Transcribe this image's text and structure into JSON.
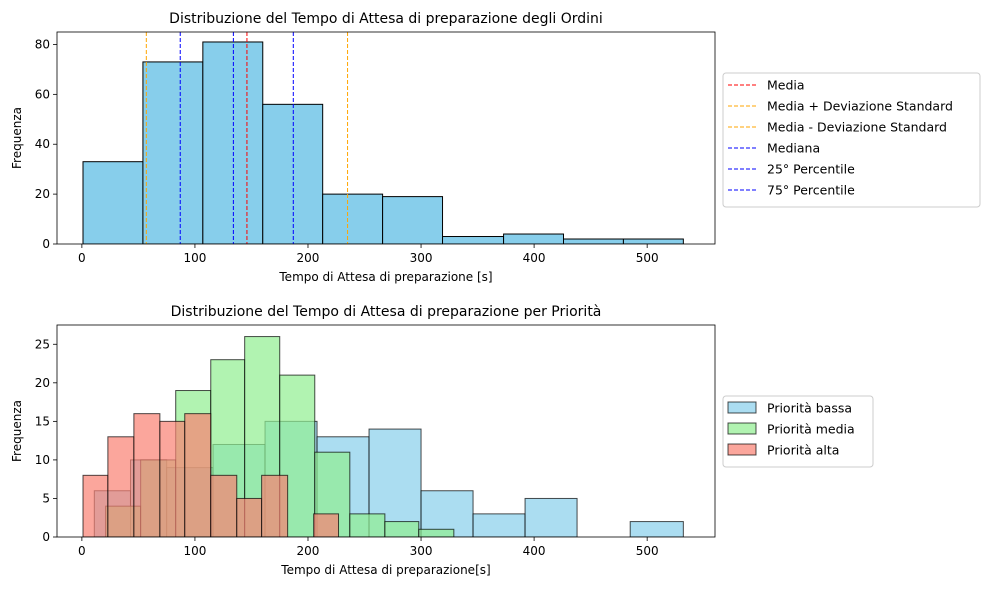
{
  "chart_data": [
    {
      "type": "histogram",
      "title": "Distribuzione del Tempo di Attesa di preparazione degli Ordini",
      "xlabel": "Tempo di Attesa di preparazione [s]",
      "ylabel": "Frequenza",
      "xlim": [
        -22,
        560
      ],
      "ylim": [
        0,
        85
      ],
      "xticks": [
        0,
        100,
        200,
        300,
        400,
        500
      ],
      "yticks": [
        0,
        20,
        40,
        60,
        80
      ],
      "legend_position": "outside-right",
      "series": [
        {
          "color": "#87ceeb",
          "bins": [
            {
              "x0": 1,
              "x1": 54,
              "count": 33
            },
            {
              "x0": 54,
              "x1": 107,
              "count": 73
            },
            {
              "x0": 107,
              "x1": 160,
              "count": 81
            },
            {
              "x0": 160,
              "x1": 213,
              "count": 56
            },
            {
              "x0": 213,
              "x1": 266,
              "count": 20
            },
            {
              "x0": 266,
              "x1": 319,
              "count": 19
            },
            {
              "x0": 319,
              "x1": 373,
              "count": 3
            },
            {
              "x0": 373,
              "x1": 426,
              "count": 4
            },
            {
              "x0": 426,
              "x1": 479,
              "count": 2
            },
            {
              "x0": 479,
              "x1": 532,
              "count": 2
            }
          ]
        }
      ],
      "vlines": [
        {
          "label": "Media",
          "x": 146,
          "color": "#ff0000"
        },
        {
          "label": "Media + Deviazione Standard",
          "x": 235,
          "color": "#ffa500"
        },
        {
          "label": "Media - Deviazione Standard",
          "x": 57,
          "color": "#ffa500"
        },
        {
          "label": "Mediana",
          "x": 134,
          "color": "#0000ff"
        },
        {
          "label": "25° Percentile",
          "x": 87,
          "color": "#0000ff"
        },
        {
          "label": "75° Percentile",
          "x": 187,
          "color": "#0000ff"
        }
      ]
    },
    {
      "type": "histogram",
      "title": "Distribuzione del Tempo di Attesa di preparazione per Priorità",
      "xlabel": "Tempo di Attesa di preparazione[s]",
      "ylabel": "Frequenza",
      "xlim": [
        -22,
        560
      ],
      "ylim": [
        0,
        27.5
      ],
      "xticks": [
        0,
        100,
        200,
        300,
        400,
        500
      ],
      "yticks": [
        0,
        5,
        10,
        15,
        20,
        25
      ],
      "legend_position": "outside-right",
      "series": [
        {
          "name": "Priorità bassa",
          "color": "#87ceeb",
          "bins": [
            {
              "x0": 11,
              "x1": 43,
              "count": 6
            },
            {
              "x0": 43,
              "x1": 75,
              "count": 10
            },
            {
              "x0": 75,
              "x1": 116,
              "count": 9
            },
            {
              "x0": 116,
              "x1": 162,
              "count": 12
            },
            {
              "x0": 162,
              "x1": 208,
              "count": 15
            },
            {
              "x0": 208,
              "x1": 254,
              "count": 13
            },
            {
              "x0": 254,
              "x1": 300,
              "count": 14
            },
            {
              "x0": 300,
              "x1": 346,
              "count": 6
            },
            {
              "x0": 346,
              "x1": 392,
              "count": 3
            },
            {
              "x0": 392,
              "x1": 438,
              "count": 5
            },
            {
              "x0": 438,
              "x1": 485,
              "count": 0
            },
            {
              "x0": 485,
              "x1": 532,
              "count": 2
            }
          ]
        },
        {
          "name": "Priorità media",
          "color": "#90ee90",
          "bins": [
            {
              "x0": 21,
              "x1": 52,
              "count": 4
            },
            {
              "x0": 52,
              "x1": 83,
              "count": 10
            },
            {
              "x0": 83,
              "x1": 114,
              "count": 19
            },
            {
              "x0": 114,
              "x1": 144,
              "count": 23
            },
            {
              "x0": 144,
              "x1": 175,
              "count": 26
            },
            {
              "x0": 175,
              "x1": 206,
              "count": 21
            },
            {
              "x0": 206,
              "x1": 237,
              "count": 11
            },
            {
              "x0": 237,
              "x1": 268,
              "count": 3
            },
            {
              "x0": 268,
              "x1": 298,
              "count": 2
            },
            {
              "x0": 298,
              "x1": 329,
              "count": 1
            }
          ]
        },
        {
          "name": "Priorità alta",
          "color": "#fa8072",
          "bins": [
            {
              "x0": 1,
              "x1": 23,
              "count": 8
            },
            {
              "x0": 23,
              "x1": 46,
              "count": 13
            },
            {
              "x0": 46,
              "x1": 69,
              "count": 16
            },
            {
              "x0": 69,
              "x1": 91,
              "count": 15
            },
            {
              "x0": 91,
              "x1": 114,
              "count": 16
            },
            {
              "x0": 114,
              "x1": 137,
              "count": 8
            },
            {
              "x0": 137,
              "x1": 159,
              "count": 5
            },
            {
              "x0": 159,
              "x1": 182,
              "count": 8
            },
            {
              "x0": 182,
              "x1": 205,
              "count": 0
            },
            {
              "x0": 205,
              "x1": 227,
              "count": 3
            }
          ]
        }
      ]
    }
  ]
}
